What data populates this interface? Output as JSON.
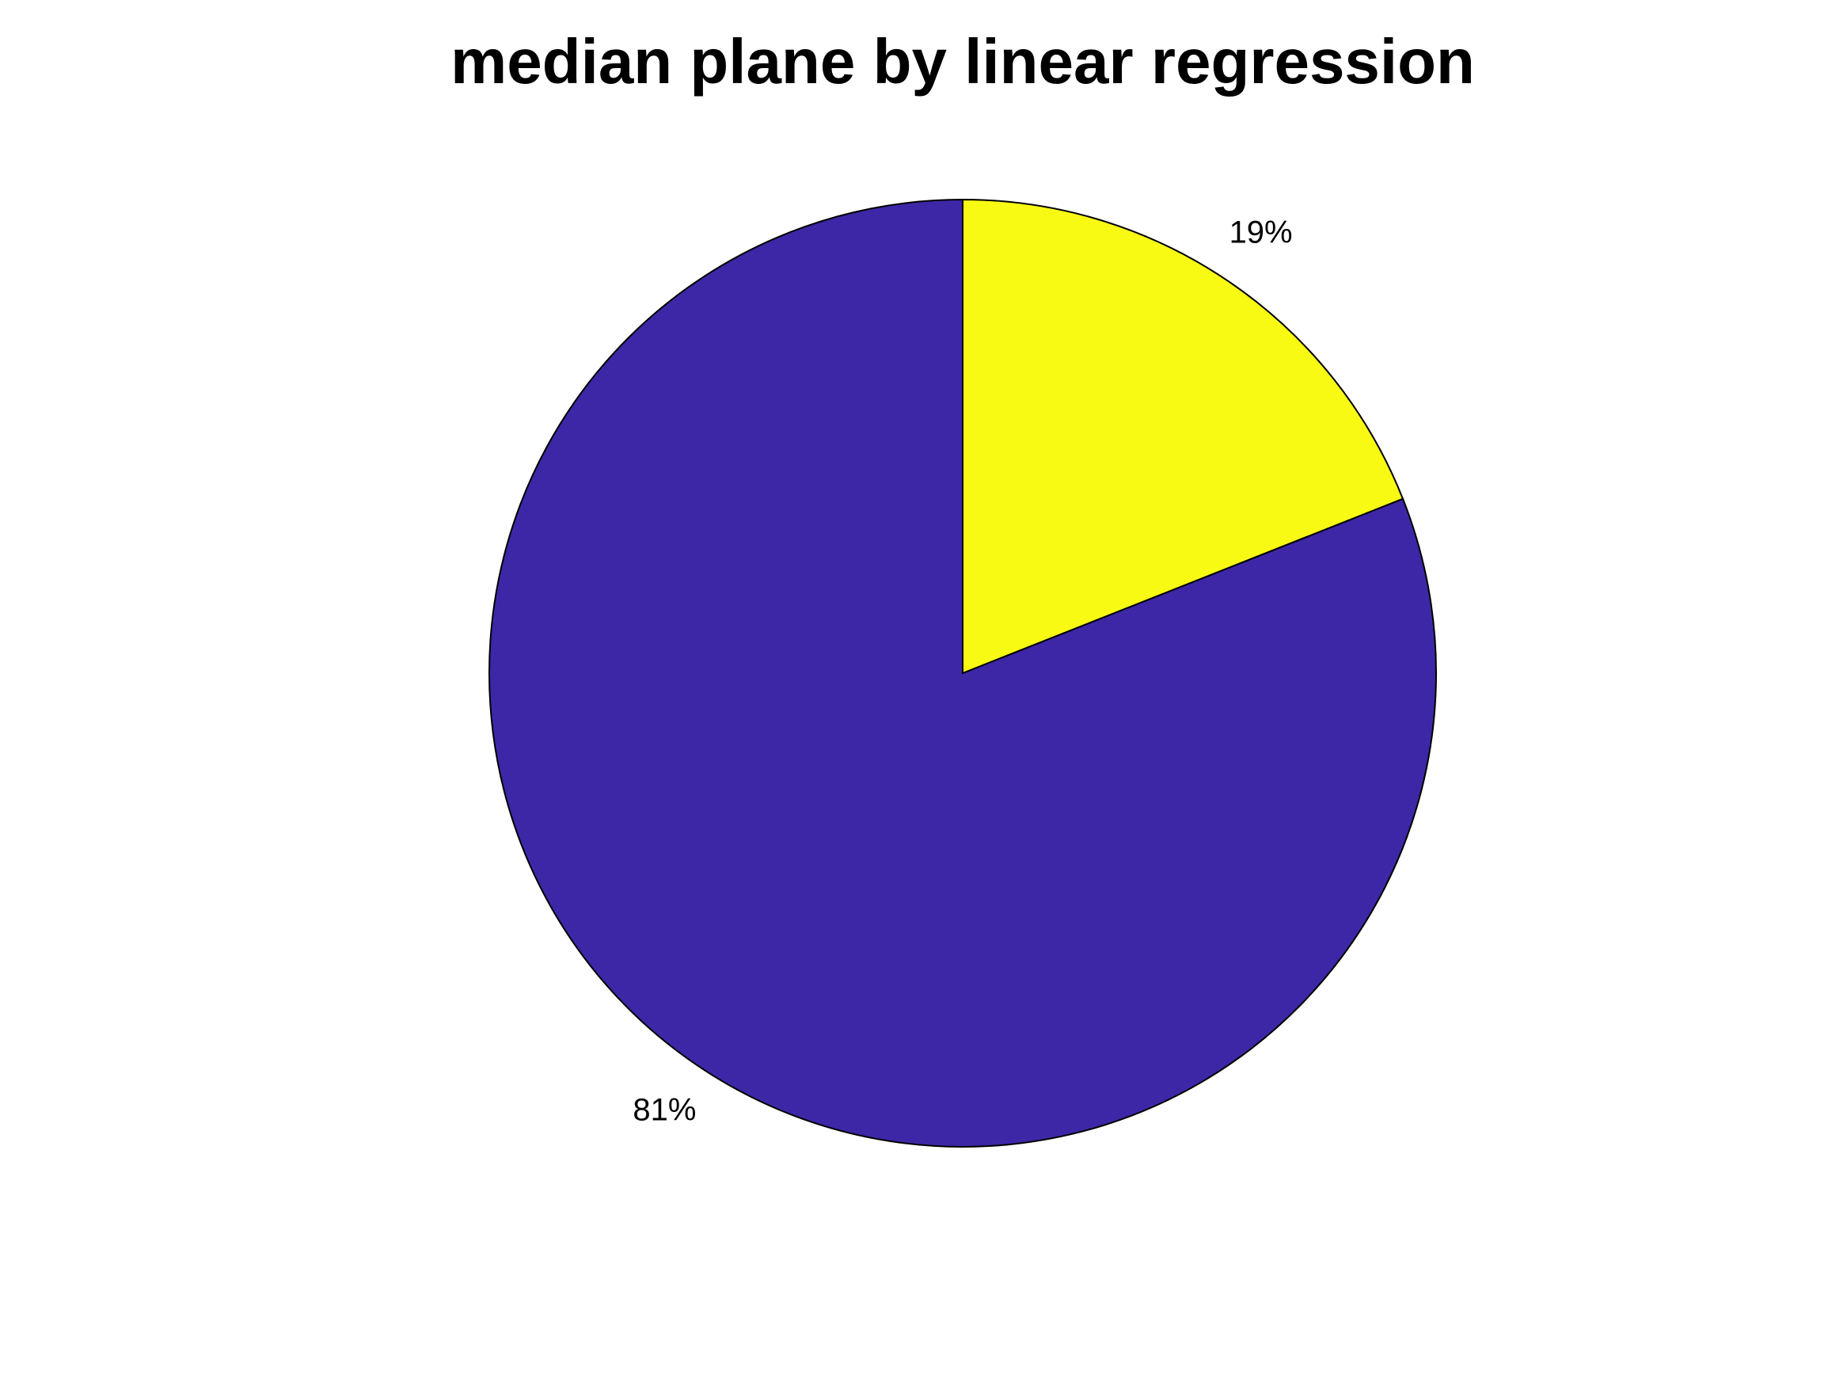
{
  "chart_data": {
    "type": "pie",
    "title": "median plane by linear regression",
    "slices": [
      {
        "label": "19%",
        "value": 19,
        "color": "#f8fa14"
      },
      {
        "label": "81%",
        "value": 81,
        "color": "#3e27a6"
      }
    ],
    "start": "top",
    "direction": "clockwise"
  }
}
